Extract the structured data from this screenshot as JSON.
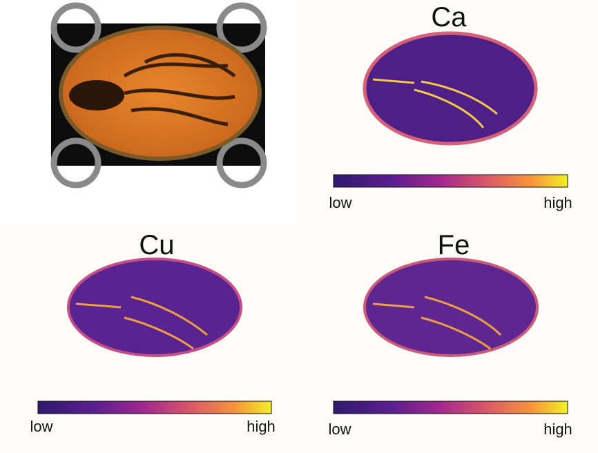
{
  "maps": [
    {
      "title": "Ca",
      "colorbar": {
        "min_label": "low",
        "max_label": "high"
      }
    },
    {
      "title": "Cu",
      "colorbar": {
        "min_label": "low",
        "max_label": "high"
      }
    },
    {
      "title": "Fe",
      "colorbar": {
        "min_label": "low",
        "max_label": "high"
      }
    }
  ]
}
